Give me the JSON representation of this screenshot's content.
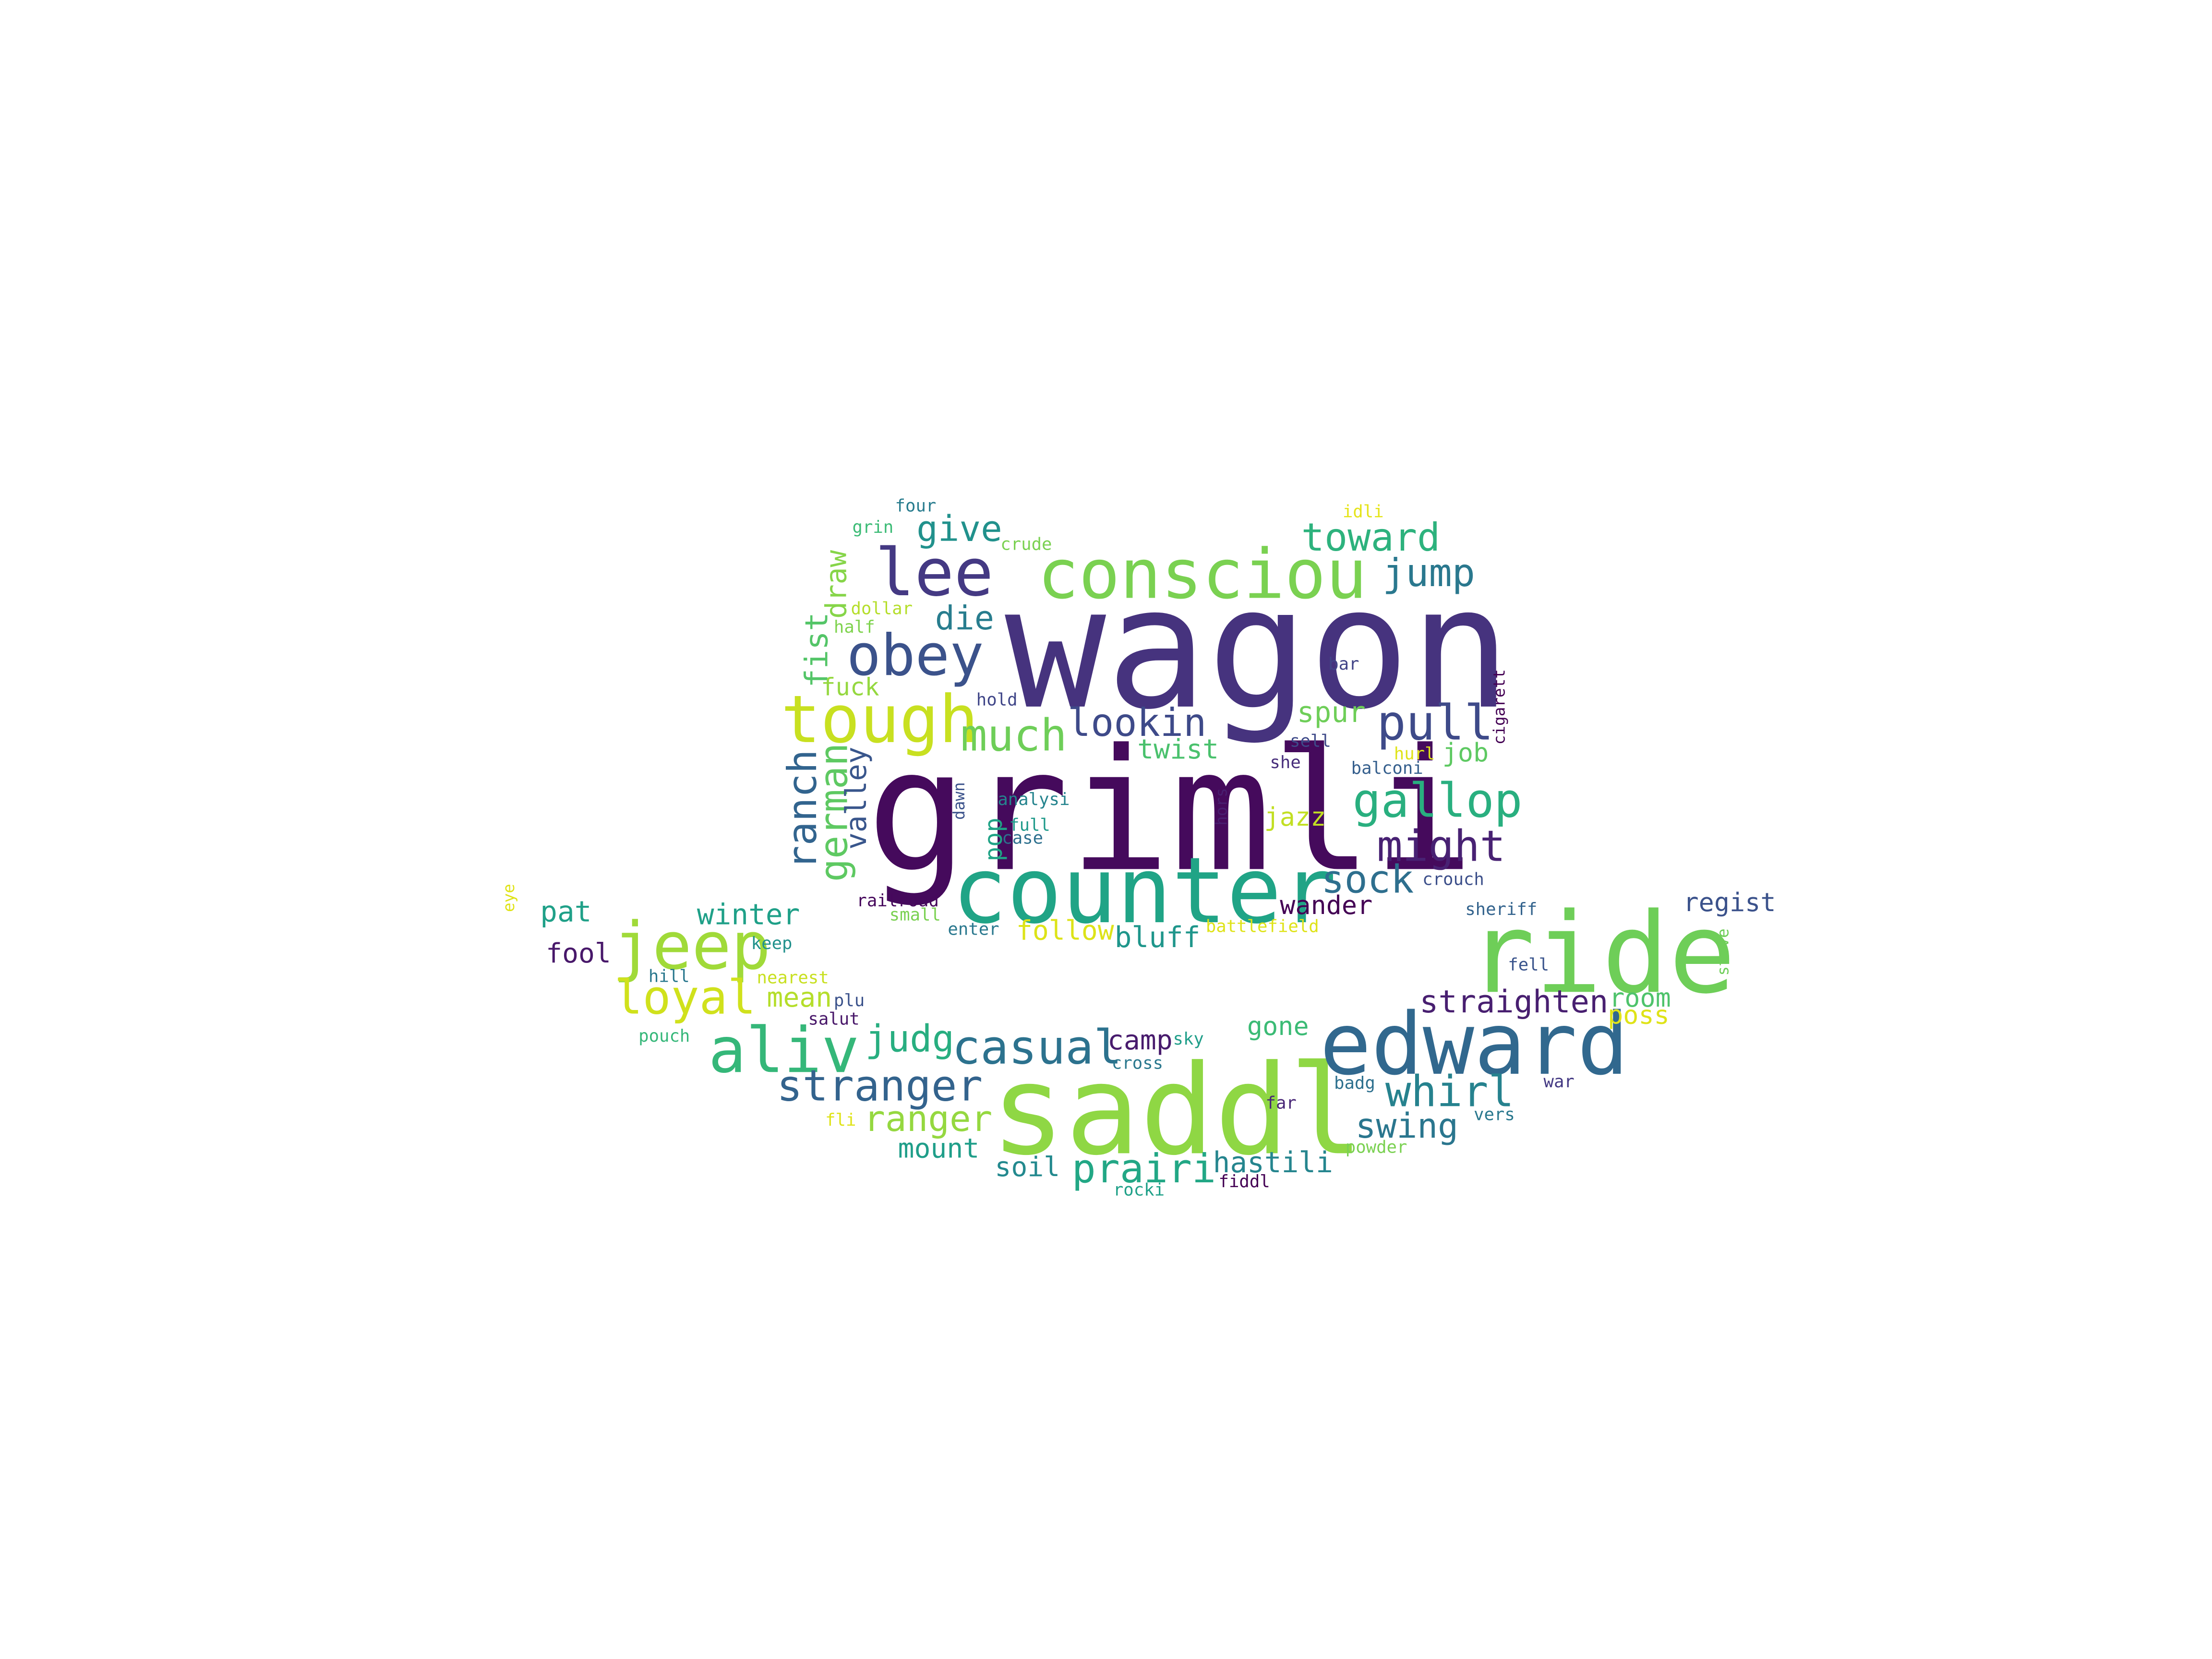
{
  "colors": {
    "background": "#ffffff",
    "palette": [
      "#440154",
      "#482878",
      "#3e4989",
      "#31688e",
      "#26828e",
      "#1f9e89",
      "#35b779",
      "#6ece58",
      "#b5de2b",
      "#dfe318"
    ]
  },
  "words": [
    {
      "text": "wagon",
      "color": "#46337e"
    },
    {
      "text": "grimli",
      "color": "#450a5c"
    },
    {
      "text": "saddl",
      "color": "#8fd744"
    },
    {
      "text": "counter",
      "color": "#20a486"
    },
    {
      "text": "ride",
      "color": "#6ece58"
    },
    {
      "text": "edward",
      "color": "#31688e"
    },
    {
      "text": "consciou",
      "color": "#7ad151"
    },
    {
      "text": "jeep",
      "color": "#a0da39"
    },
    {
      "text": "tough",
      "color": "#c8e020"
    },
    {
      "text": "lee",
      "color": "#443983"
    },
    {
      "text": "aliv",
      "color": "#35b779"
    },
    {
      "text": "obey",
      "color": "#3b528b"
    },
    {
      "text": "casual",
      "color": "#2c728e"
    },
    {
      "text": "gallop",
      "color": "#29af7f"
    },
    {
      "text": "stranger",
      "color": "#33638d"
    },
    {
      "text": "loyal",
      "color": "#d0e11c"
    },
    {
      "text": "prairi",
      "color": "#22a785"
    },
    {
      "text": "much",
      "color": "#6ece58"
    },
    {
      "text": "whirl",
      "color": "#26828e"
    },
    {
      "text": "pull",
      "color": "#3e4a89"
    },
    {
      "text": "might",
      "color": "#482173"
    },
    {
      "text": "sock",
      "color": "#2e6f8e"
    },
    {
      "text": "ranch",
      "color": "#32648e"
    },
    {
      "text": "lookin",
      "color": "#3e4a89"
    },
    {
      "text": "german",
      "color": "#5ec962"
    },
    {
      "text": "judg",
      "color": "#28ae80"
    },
    {
      "text": "toward",
      "color": "#2db27d"
    },
    {
      "text": "jump",
      "color": "#2a788e"
    },
    {
      "text": "give",
      "color": "#21918c"
    },
    {
      "text": "ranger",
      "color": "#95d840"
    },
    {
      "text": "swing",
      "color": "#2a768e"
    },
    {
      "text": "straighten",
      "color": "#481f70"
    },
    {
      "text": "valley",
      "color": "#39568c"
    },
    {
      "text": "die",
      "color": "#287d8e"
    },
    {
      "text": "fist",
      "color": "#54c568"
    },
    {
      "text": "draw",
      "color": "#86d549"
    },
    {
      "text": "twist",
      "color": "#4ac16d"
    },
    {
      "text": "winter",
      "color": "#1fa088"
    },
    {
      "text": "mount",
      "color": "#1f9e89"
    },
    {
      "text": "spur",
      "color": "#6ece58"
    },
    {
      "text": "bluff",
      "color": "#1f968b"
    },
    {
      "text": "follow",
      "color": "#dde318"
    },
    {
      "text": "hastili",
      "color": "#25858e"
    },
    {
      "text": "pat",
      "color": "#1fa088"
    },
    {
      "text": "fool",
      "color": "#48186a"
    },
    {
      "text": "mean",
      "color": "#b5de2b"
    },
    {
      "text": "soil",
      "color": "#23898e"
    },
    {
      "text": "camp",
      "color": "#481b6d"
    },
    {
      "text": "gone",
      "color": "#3bbb75"
    },
    {
      "text": "wander",
      "color": "#440154"
    },
    {
      "text": "jazz",
      "color": "#c2df23"
    },
    {
      "text": "job",
      "color": "#5ec962"
    },
    {
      "text": "room",
      "color": "#4ec36b"
    },
    {
      "text": "poss",
      "color": "#dfe318"
    },
    {
      "text": "regist",
      "color": "#3b528b"
    },
    {
      "text": "pop",
      "color": "#20a386"
    },
    {
      "text": "fuck",
      "color": "#95d840"
    },
    {
      "text": "four",
      "color": "#287c8e"
    },
    {
      "text": "grin",
      "color": "#3bbb75"
    },
    {
      "text": "crude",
      "color": "#7ad151"
    },
    {
      "text": "idli",
      "color": "#e5e419"
    },
    {
      "text": "dollar",
      "color": "#b5de2b"
    },
    {
      "text": "half",
      "color": "#7fd34e"
    },
    {
      "text": "hold",
      "color": "#404688"
    },
    {
      "text": "bar",
      "color": "#414487"
    },
    {
      "text": "sell",
      "color": "#3e4a89"
    },
    {
      "text": "hurl",
      "color": "#dfe318"
    },
    {
      "text": "she",
      "color": "#472d7b"
    },
    {
      "text": "balconi",
      "color": "#355f8d"
    },
    {
      "text": "cigarett",
      "color": "#440154"
    },
    {
      "text": "analysi",
      "color": "#25848e"
    },
    {
      "text": "full",
      "color": "#1f9a8a"
    },
    {
      "text": "case",
      "color": "#2d708e"
    },
    {
      "text": "dawn",
      "color": "#3b528b"
    },
    {
      "text": "hors",
      "color": "#481f70"
    },
    {
      "text": "crouch",
      "color": "#3c4f8a"
    },
    {
      "text": "railroad",
      "color": "#46085c"
    },
    {
      "text": "small",
      "color": "#7ad151"
    },
    {
      "text": "enter",
      "color": "#2a788e"
    },
    {
      "text": "battlefield",
      "color": "#dfe318"
    },
    {
      "text": "sheriff",
      "color": "#33638d"
    },
    {
      "text": "stove",
      "color": "#6ece58"
    },
    {
      "text": "fell",
      "color": "#3a548c"
    },
    {
      "text": "eye",
      "color": "#dfe318"
    },
    {
      "text": "keep",
      "color": "#21918c"
    },
    {
      "text": "hill",
      "color": "#2a788e"
    },
    {
      "text": "nearest",
      "color": "#c8e020"
    },
    {
      "text": "plu",
      "color": "#3b528b"
    },
    {
      "text": "salut",
      "color": "#481769"
    },
    {
      "text": "pouch",
      "color": "#35b779"
    },
    {
      "text": "sky",
      "color": "#1f9e89"
    },
    {
      "text": "cross",
      "color": "#2a788e"
    },
    {
      "text": "badg",
      "color": "#2d708e"
    },
    {
      "text": "war",
      "color": "#443983"
    },
    {
      "text": "far",
      "color": "#482677"
    },
    {
      "text": "vers",
      "color": "#2a788e"
    },
    {
      "text": "fli",
      "color": "#dfe318"
    },
    {
      "text": "powder",
      "color": "#7ad151"
    },
    {
      "text": "rocki",
      "color": "#1fa088"
    },
    {
      "text": "fiddl",
      "color": "#440154"
    }
  ]
}
